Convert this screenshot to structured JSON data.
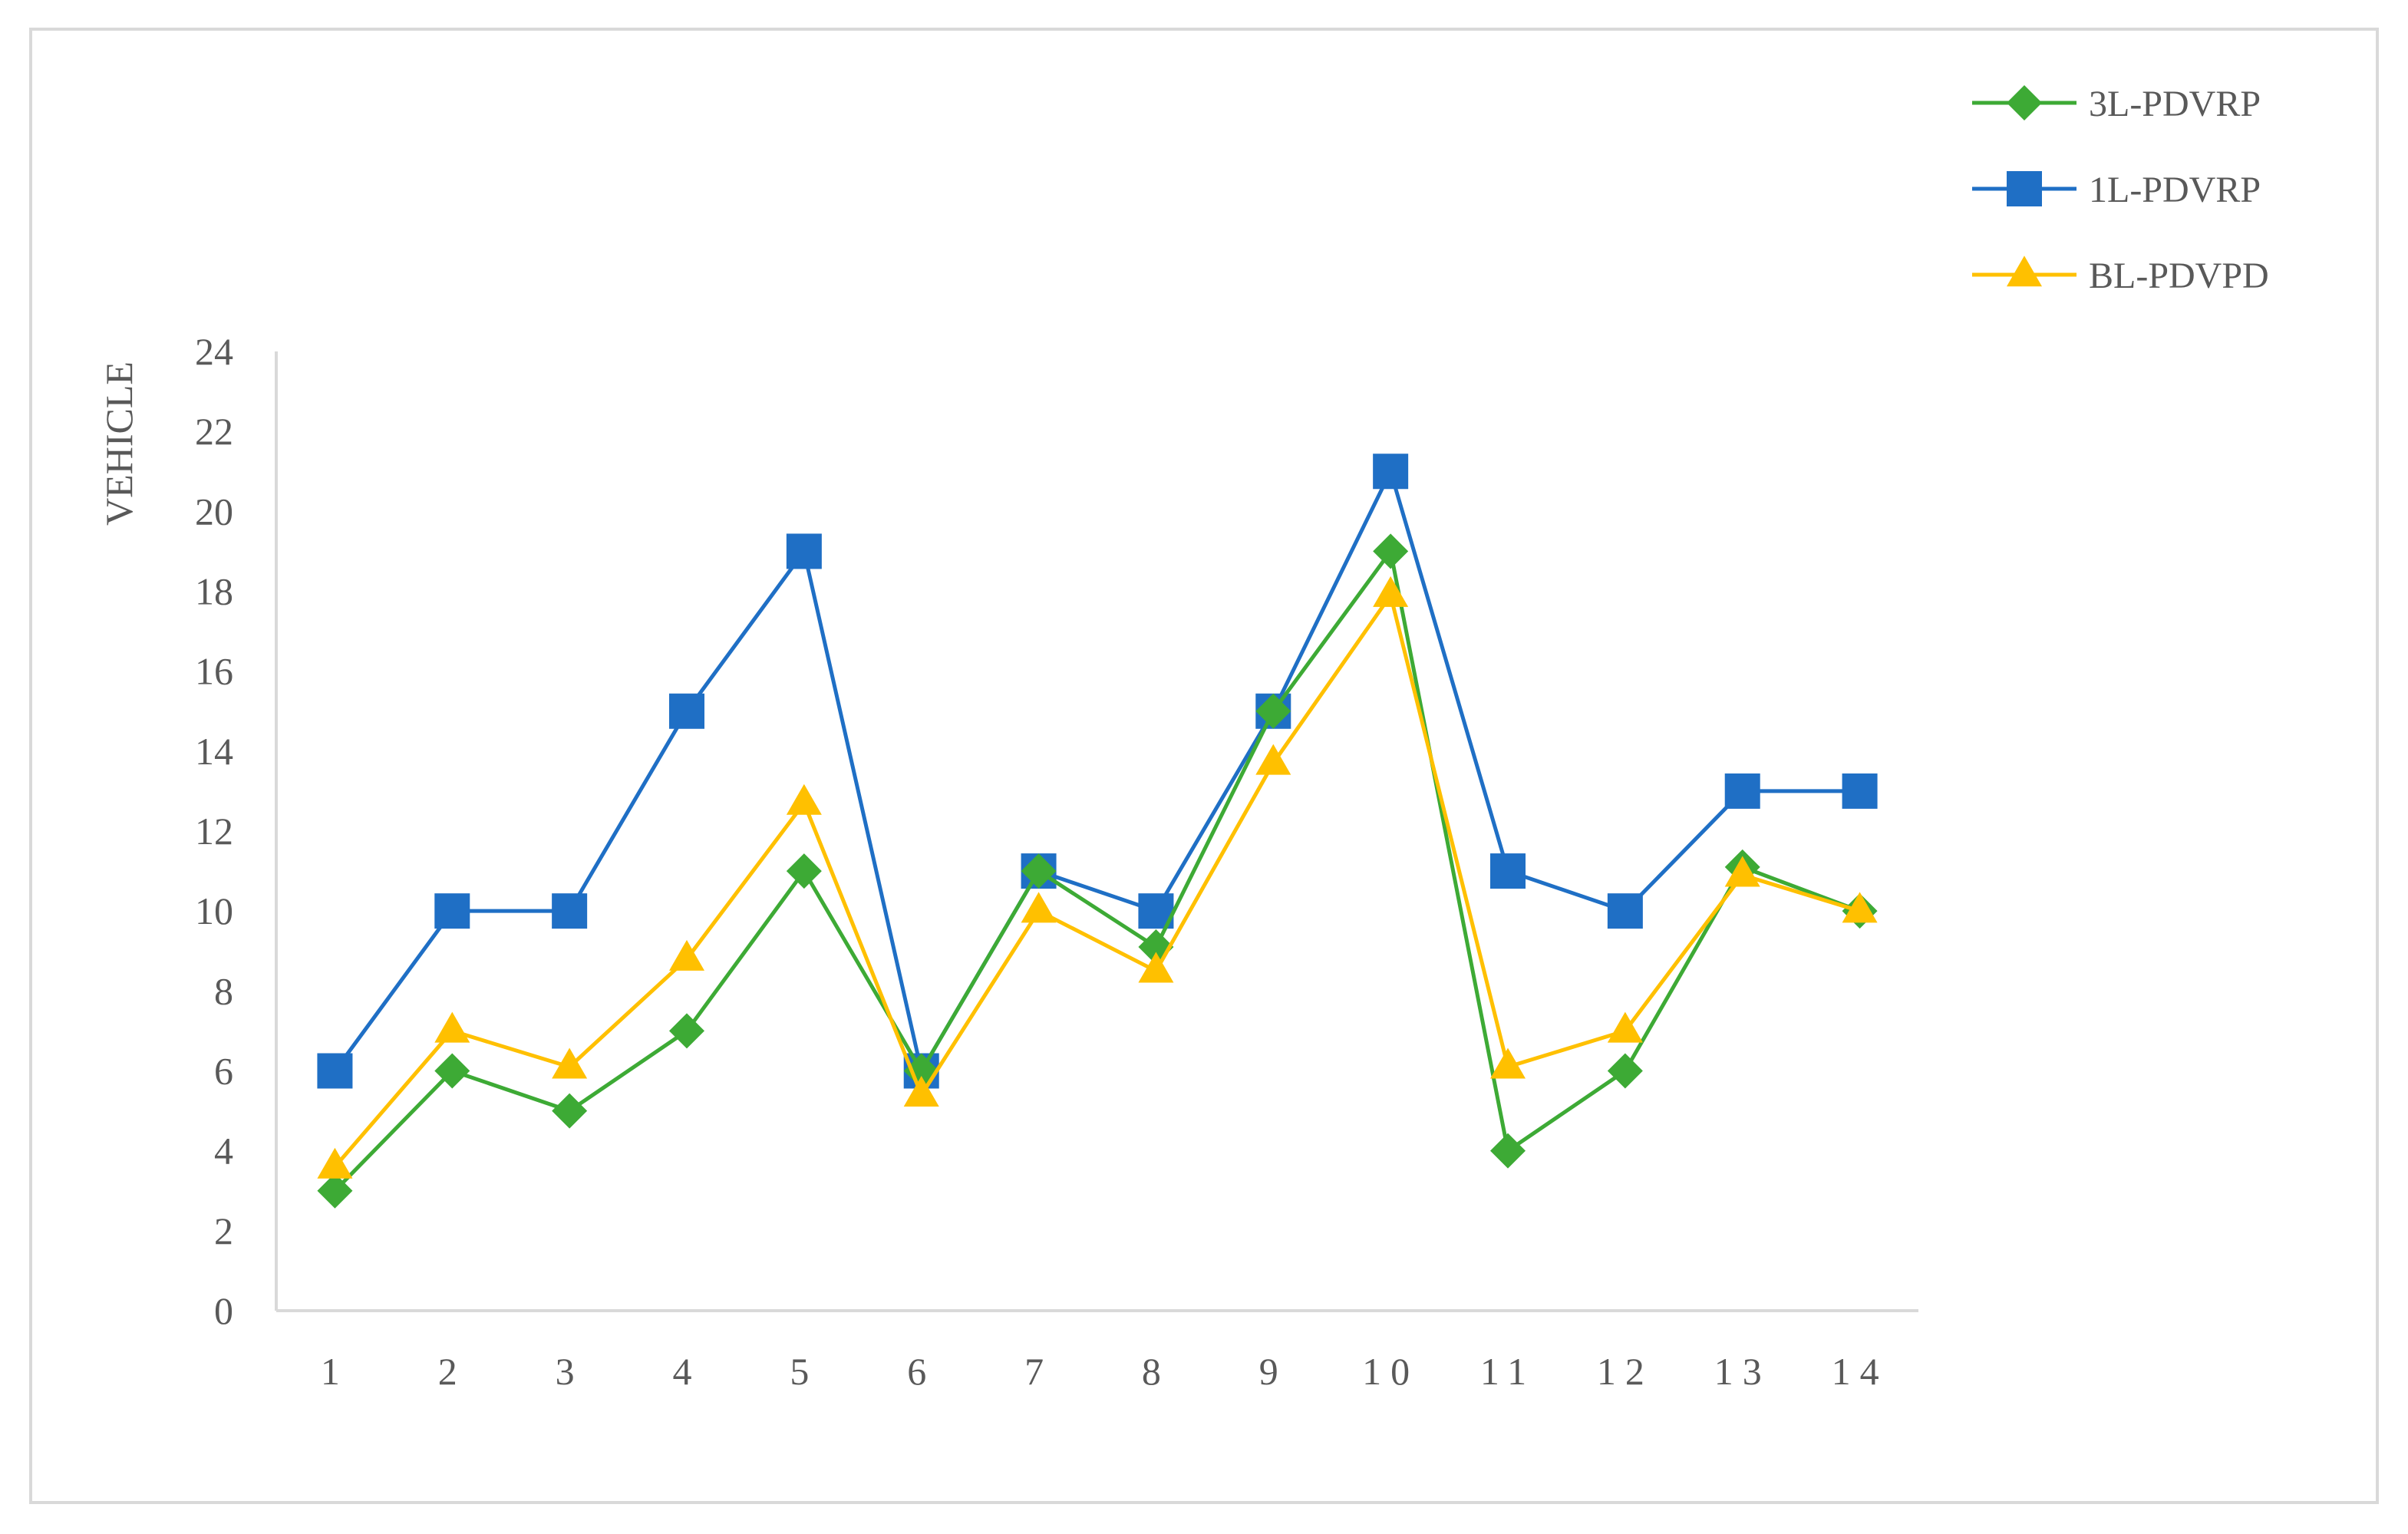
{
  "chart_data": {
    "type": "line",
    "title": "",
    "xlabel": "",
    "ylabel": "VEHICLE",
    "categories": [
      "1",
      "2",
      "3",
      "4",
      "5",
      "6",
      "7",
      "8",
      "9",
      "10",
      "11",
      "12",
      "13",
      "14"
    ],
    "ylim": [
      0,
      24
    ],
    "yticks": [
      "0",
      "2",
      "4",
      "6",
      "8",
      "10",
      "12",
      "14",
      "16",
      "18",
      "20",
      "22",
      "24"
    ],
    "grid": false,
    "legend_position": "top-right",
    "series": [
      {
        "name": "3L-PDVRP",
        "color": "#3daa35",
        "marker": "diamond",
        "values": [
          3,
          6,
          5,
          7,
          11,
          6,
          11,
          9.1,
          15,
          19,
          4,
          6,
          11.1,
          10
        ]
      },
      {
        "name": "1L-PDVRP",
        "color": "#1f6fc5",
        "marker": "square",
        "values": [
          6,
          10,
          10,
          15,
          19,
          6,
          11,
          10,
          15,
          21,
          11,
          10,
          13,
          13
        ]
      },
      {
        "name": "BL-PDVPD",
        "color": "#ffc000",
        "marker": "triangle",
        "values": [
          3.6,
          7,
          6.1,
          8.8,
          12.7,
          5.4,
          10,
          8.5,
          13.7,
          17.9,
          6.1,
          7,
          10.9,
          10
        ]
      }
    ]
  }
}
